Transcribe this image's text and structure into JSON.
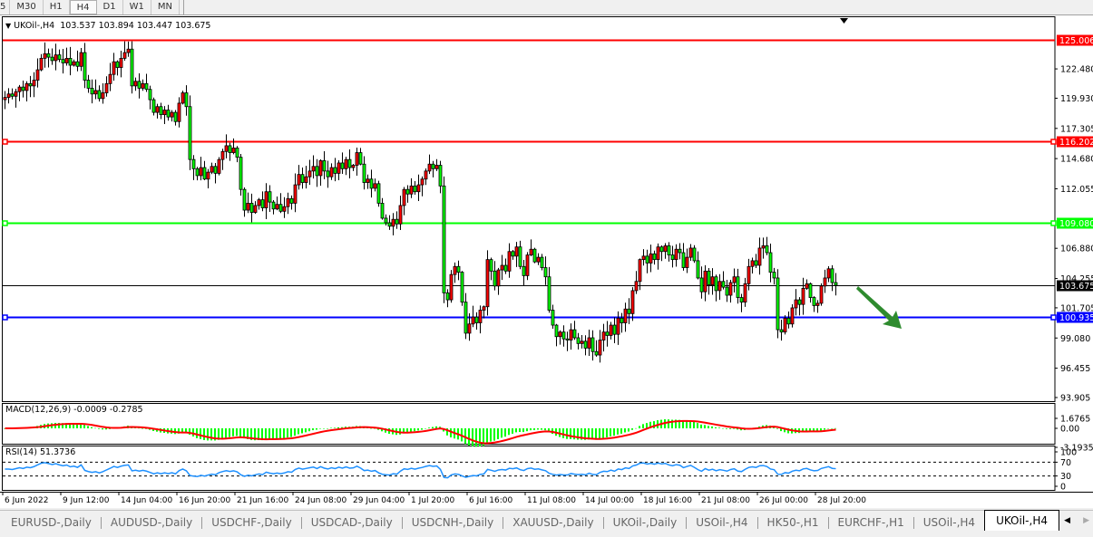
{
  "toolbar": {
    "timeframes": [
      "5",
      "M30",
      "H1",
      "H4",
      "D1",
      "W1",
      "MN"
    ],
    "active": "H4"
  },
  "legend": {
    "symbol": "UKOil-,H4",
    "ohlc": "103.537 103.894 103.447 103.675"
  },
  "macd": {
    "label": "MACD(12,26,9) -0.0009 -0.2785",
    "ticks": [
      "1.6765",
      "0.00",
      "-3.1935"
    ],
    "tick_values": [
      1.6765,
      0,
      -3.1935
    ],
    "hist_color": "#00ff00",
    "signal_color": "#ff0000"
  },
  "rsi": {
    "label": "RSI(14) 51.3736",
    "ticks": [
      "100",
      "70",
      "30",
      "0"
    ],
    "tick_values": [
      100,
      70,
      30,
      0
    ],
    "levels": [
      70,
      30
    ],
    "line_color": "#1e90ff"
  },
  "chart_data": {
    "type": "candlestick",
    "symbol": "UKOil-",
    "timeframe": "H4",
    "ylim": [
      93.905,
      125.006
    ],
    "bull_color": "#ff0000",
    "bear_color": "#00ff00",
    "first_open": 119.8,
    "closes": [
      120.0,
      120.3,
      120.1,
      120.5,
      120.9,
      120.6,
      121.2,
      121.0,
      121.5,
      122.4,
      123.4,
      123.8,
      123.5,
      123.2,
      123.7,
      123.3,
      123.0,
      123.4,
      122.8,
      123.1,
      122.7,
      123.9,
      121.5,
      120.8,
      120.3,
      120.6,
      119.9,
      120.4,
      121.2,
      122.0,
      123.1,
      122.6,
      123.4,
      123.9,
      124.2,
      121.0,
      121.4,
      120.8,
      121.2,
      120.7,
      119.8,
      118.7,
      119.2,
      118.5,
      118.9,
      118.3,
      118.7,
      117.9,
      119.5,
      120.4,
      119.2,
      114.6,
      113.8,
      113.2,
      113.9,
      112.9,
      113.5,
      114.0,
      113.4,
      114.6,
      115.3,
      115.8,
      115.2,
      115.6,
      114.8,
      112.0,
      110.2,
      110.8,
      110.0,
      110.6,
      111.1,
      110.4,
      111.8,
      110.9,
      110.3,
      110.7,
      110.1,
      110.5,
      111.2,
      110.8,
      112.4,
      113.3,
      112.6,
      113.1,
      113.6,
      114.0,
      113.2,
      114.5,
      113.6,
      113.1,
      113.9,
      113.4,
      114.3,
      113.8,
      114.6,
      113.9,
      114.1,
      115.2,
      114.2,
      112.6,
      112.9,
      112.1,
      112.5,
      110.8,
      109.5,
      109.1,
      108.8,
      109.4,
      109.0,
      110.6,
      112.0,
      111.6,
      112.3,
      111.8,
      112.4,
      112.9,
      113.6,
      114.2,
      113.8,
      114.1,
      112.3,
      103.0,
      102.4,
      104.6,
      105.3,
      104.8,
      102.2,
      99.5,
      100.3,
      100.9,
      100.4,
      101.5,
      101.8,
      105.9,
      104.9,
      103.6,
      105.0,
      105.4,
      104.9,
      106.6,
      106.2,
      107.0,
      105.3,
      104.5,
      106.3,
      106.8,
      105.7,
      106.1,
      105.2,
      104.4,
      101.5,
      100.2,
      99.2,
      99.6,
      99.0,
      98.9,
      99.8,
      99.1,
      98.6,
      98.8,
      98.2,
      99.1,
      97.9,
      97.6,
      98.9,
      99.6,
      99.3,
      100.2,
      99.4,
      100.8,
      100.4,
      101.6,
      101.2,
      103.2,
      104.0,
      105.9,
      106.2,
      105.6,
      106.4,
      105.9,
      107.0,
      106.6,
      107.1,
      106.3,
      105.9,
      106.8,
      106.5,
      105.2,
      106.1,
      106.9,
      105.8,
      104.3,
      103.1,
      104.9,
      103.7,
      104.4,
      103.2,
      104.0,
      103.5,
      102.8,
      103.9,
      104.4,
      102.6,
      102.2,
      103.8,
      105.3,
      105.8,
      105.4,
      106.9,
      107.1,
      106.5,
      104.8,
      104.3,
      99.8,
      99.6,
      100.8,
      100.3,
      101.7,
      102.4,
      102.0,
      103.4,
      103.8,
      102.6,
      101.9,
      102.1,
      103.6,
      104.3,
      105.1,
      103.9,
      103.675
    ],
    "last_price": 103.675,
    "y_ticks": [
      "122.480",
      "119.930",
      "117.305",
      "114.680",
      "112.055",
      "106.880",
      "104.255",
      "101.705",
      "99.080",
      "96.455",
      "93.905"
    ],
    "y_tick_values": [
      122.48,
      119.93,
      117.305,
      114.68,
      112.055,
      106.88,
      104.255,
      101.705,
      99.08,
      96.455,
      93.905
    ],
    "x_ticks": [
      "6 Jun 2022",
      "9 Jun 12:00",
      "14 Jun 04:00",
      "16 Jun 20:00",
      "21 Jun 16:00",
      "24 Jun 08:00",
      "29 Jun 04:00",
      "1 Jul 20:00",
      "6 Jul 16:00",
      "11 Jul 08:00",
      "14 Jul 00:00",
      "18 Jul 16:00",
      "21 Jul 08:00",
      "26 Jul 00:00",
      "28 Jul 20:00"
    ],
    "horizontal_lines": [
      {
        "price": 125.006,
        "label": "125.006",
        "color": "#ff0000"
      },
      {
        "price": 116.202,
        "label": "116.202",
        "color": "#ff0000"
      },
      {
        "price": 109.08,
        "label": "109.080",
        "color": "#00ff00"
      },
      {
        "price": 100.935,
        "label": "100.935",
        "color": "#0000ff"
      }
    ],
    "price_line": {
      "price": 103.675,
      "label": "103.675",
      "color": "#000000"
    },
    "annotation": {
      "type": "arrow",
      "direction": "down-right",
      "color": "#2e8b2e"
    }
  },
  "tabs": {
    "items": [
      "EURUSD-,Daily",
      "AUDUSD-,Daily",
      "USDCHF-,Daily",
      "USDCAD-,Daily",
      "USDCNH-,Daily",
      "XAUUSD-,Daily",
      "UKOil-,Daily",
      "USOil-,H4",
      "HK50-,H1",
      "EURCHF-,H1",
      "USOil-,H4",
      "UKOil-,H4"
    ],
    "active": "UKOil-,H4"
  }
}
